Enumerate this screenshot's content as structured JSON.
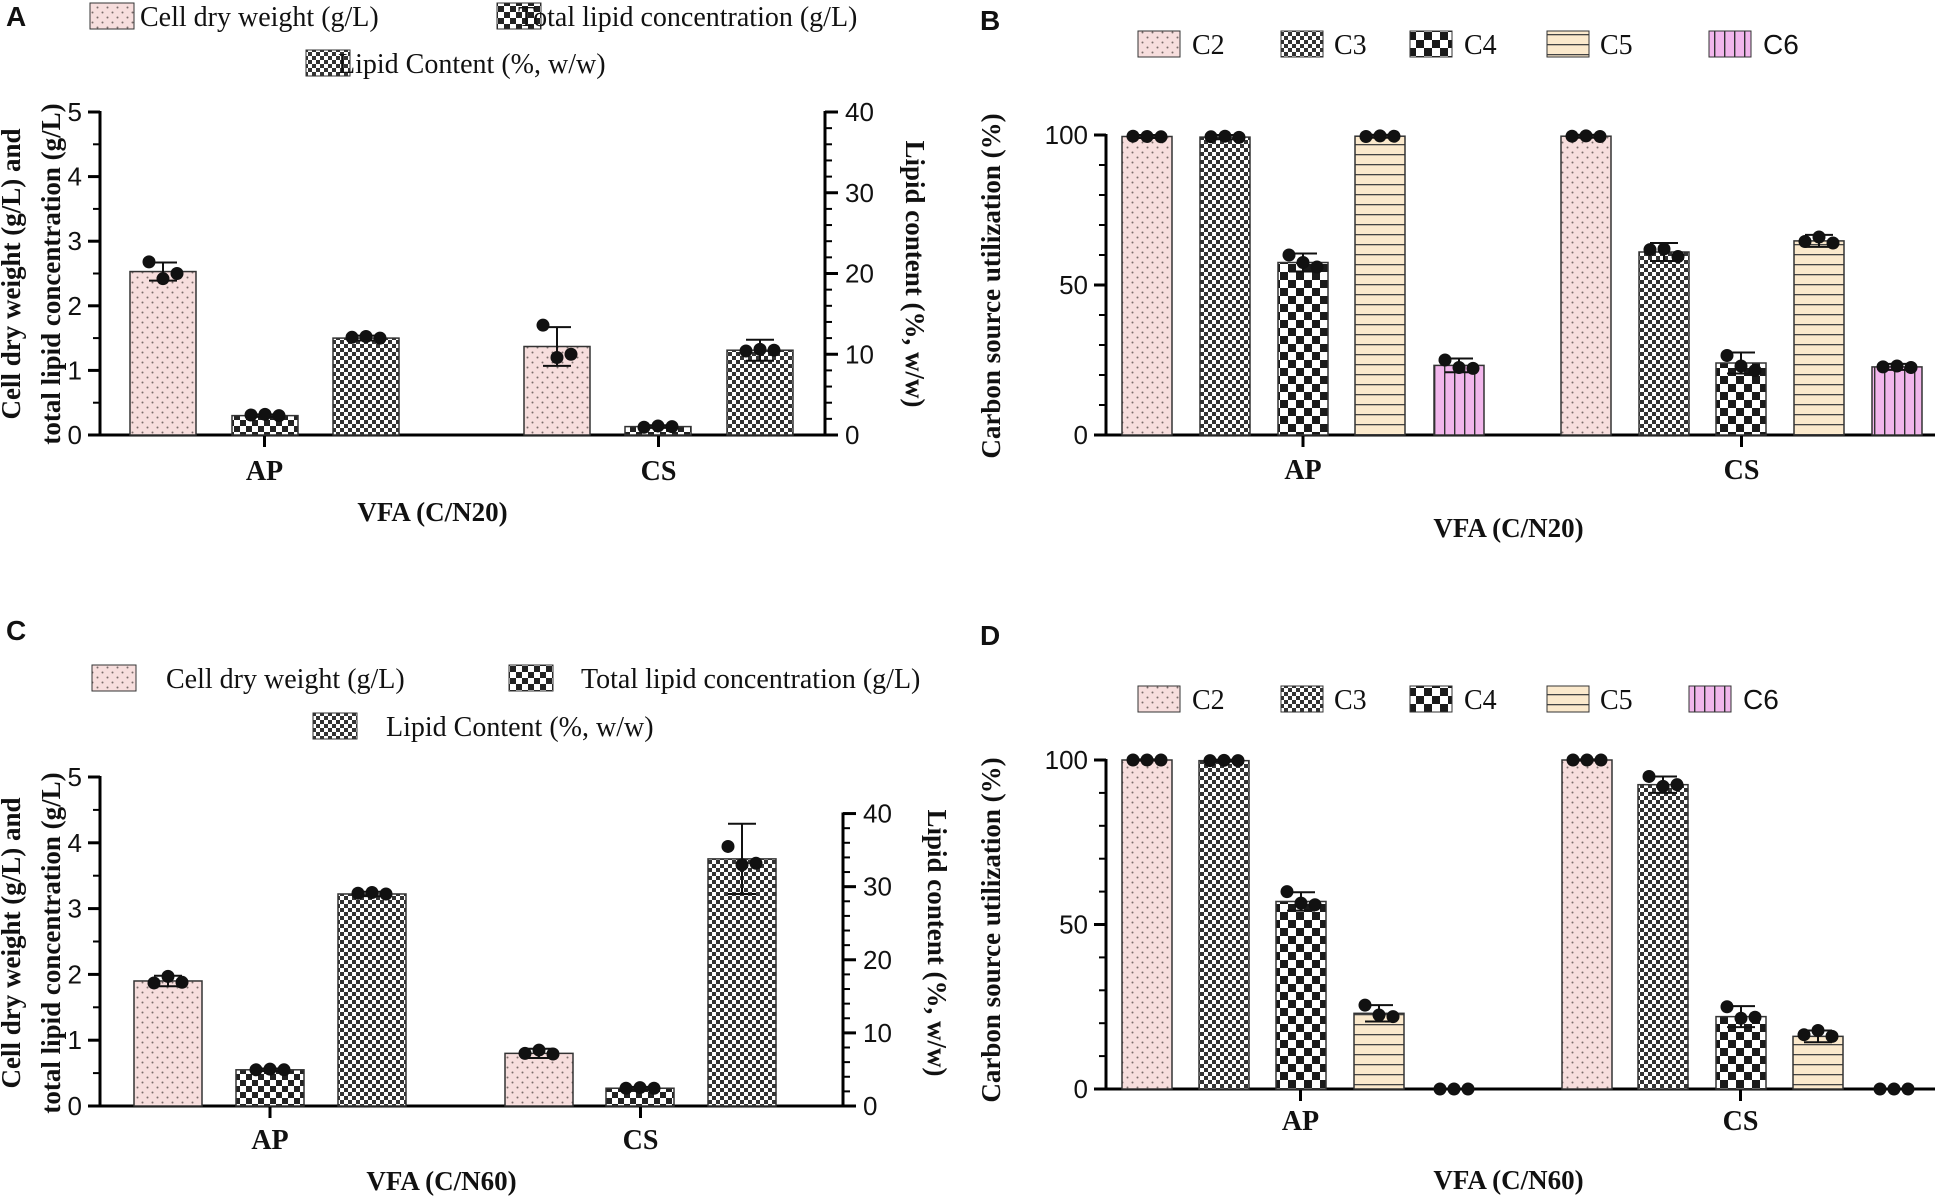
{
  "figure": {
    "colors": {
      "axis": "#000000",
      "pink": "#f7dedd",
      "peach": "#fbe9cc",
      "magenta": "#f2b6ec",
      "dots": "#111111"
    }
  },
  "chart_data": [
    {
      "panel": "A",
      "type": "bar",
      "categories": [
        "AP",
        "CS"
      ],
      "xlabel": "VFA (C/N20)",
      "ylabel_lines": [
        "Cell dry weight (g/L) and",
        "total lipid concentration (g/L)"
      ],
      "ylabel_right": "Lipid content (%, w/w)",
      "ylim": [
        0,
        5
      ],
      "yticks": [
        "0",
        "1",
        "2",
        "3",
        "4",
        "5"
      ],
      "ylim_right": [
        0,
        40
      ],
      "yticks_right": [
        "0",
        "10",
        "20",
        "30",
        "40"
      ],
      "legend": [
        {
          "label": "Cell dry weight (g/L)",
          "pattern": "dots-pink"
        },
        {
          "label": "Total lipid concentration (g/L)",
          "pattern": "checker-fine"
        },
        {
          "label": "Lipid Content (%, w/w)",
          "pattern": "checker-dense"
        }
      ],
      "series": [
        {
          "name": "Cell dry weight (g/L)",
          "axis": "left",
          "pattern": "dots-pink",
          "values": [
            2.53,
            1.37
          ],
          "err": [
            0.14,
            0.3
          ],
          "points": [
            [
              2.68,
              2.42,
              2.5
            ],
            [
              1.7,
              1.2,
              1.25
            ]
          ]
        },
        {
          "name": "Total lipid concentration (g/L)",
          "axis": "left",
          "pattern": "checker-fine",
          "values": [
            0.3,
            0.13
          ],
          "err": [
            0.02,
            0.02
          ],
          "points": [
            [
              0.31,
              0.32,
              0.3
            ],
            [
              0.12,
              0.14,
              0.13
            ]
          ]
        },
        {
          "name": "Lipid Content (%, w/w)",
          "axis": "right",
          "pattern": "checker-dense",
          "values": [
            12.0,
            10.5
          ],
          "err": [
            0.3,
            1.3
          ],
          "points": [
            [
              12.1,
              12.2,
              12.0
            ],
            [
              10.4,
              10.6,
              10.5
            ]
          ]
        }
      ]
    },
    {
      "panel": "B",
      "type": "bar",
      "categories": [
        "AP",
        "CS"
      ],
      "xlabel": "VFA (C/N20)",
      "ylabel": "Carbon source utilization (%)",
      "ylim": [
        0,
        100
      ],
      "yticks": [
        "0",
        "50",
        "100"
      ],
      "legend": [
        {
          "label": "C2",
          "pattern": "dots-pink"
        },
        {
          "label": "C3",
          "pattern": "checker-dense"
        },
        {
          "label": "C4",
          "pattern": "checker-coarse"
        },
        {
          "label": "C5",
          "pattern": "hlines-peach"
        },
        {
          "label": "C6",
          "pattern": "vlines-magenta"
        }
      ],
      "series": [
        {
          "name": "C2",
          "pattern": "dots-pink",
          "values": [
            99.5,
            99.6
          ],
          "err": [
            0.5,
            0.5
          ],
          "points": [
            [
              99.6,
              99.5,
              99.4
            ],
            [
              99.6,
              99.7,
              99.5
            ]
          ]
        },
        {
          "name": "C3",
          "pattern": "checker-dense",
          "values": [
            99.3,
            61.0
          ],
          "err": [
            0.7,
            3.0
          ],
          "points": [
            [
              99.4,
              99.6,
              99.2
            ],
            [
              61.8,
              62.0,
              59.5
            ]
          ]
        },
        {
          "name": "C4",
          "pattern": "checker-coarse",
          "values": [
            57.5,
            24.0
          ],
          "err": [
            3.0,
            3.5
          ],
          "points": [
            [
              60.0,
              57.5,
              56.0
            ],
            [
              26.5,
              23.0,
              21.5
            ]
          ]
        },
        {
          "name": "C5",
          "pattern": "hlines-peach",
          "values": [
            99.6,
            64.7
          ],
          "err": [
            0.5,
            2.0
          ],
          "points": [
            [
              99.5,
              99.7,
              99.6
            ],
            [
              64.5,
              66.0,
              64.0
            ]
          ]
        },
        {
          "name": "C6",
          "pattern": "vlines-magenta",
          "values": [
            23.2,
            22.7
          ],
          "err": [
            2.3,
            1.0
          ],
          "points": [
            [
              25.0,
              22.5,
              22.2
            ],
            [
              22.7,
              23.0,
              22.5
            ]
          ]
        }
      ]
    },
    {
      "panel": "C",
      "type": "bar",
      "categories": [
        "AP",
        "CS"
      ],
      "xlabel": "VFA (C/N60)",
      "ylabel_lines": [
        "Cell dry weight (g/L) and",
        "total lipid concentration (g/L)"
      ],
      "ylabel_right": "Lipid content (%, w/w)",
      "ylim": [
        0,
        5
      ],
      "yticks": [
        "0",
        "1",
        "2",
        "3",
        "4",
        "5"
      ],
      "ylim_right": [
        0,
        45
      ],
      "yticks_right": [
        "0",
        "10",
        "20",
        "30",
        "40"
      ],
      "legend": [
        {
          "label": "Cell dry weight (g/L)",
          "pattern": "dots-pink"
        },
        {
          "label": "Total lipid concentration (g/L)",
          "pattern": "checker-fine"
        },
        {
          "label": "Lipid Content (%, w/w)",
          "pattern": "checker-dense"
        }
      ],
      "series": [
        {
          "name": "Cell dry weight (g/L)",
          "axis": "left",
          "pattern": "dots-pink",
          "values": [
            1.9,
            0.8
          ],
          "err": [
            0.08,
            0.07
          ],
          "points": [
            [
              1.87,
              1.97,
              1.88
            ],
            [
              0.8,
              0.85,
              0.79
            ]
          ]
        },
        {
          "name": "Total lipid concentration (g/L)",
          "axis": "left",
          "pattern": "checker-fine",
          "values": [
            0.55,
            0.27
          ],
          "err": [
            0.02,
            0.02
          ],
          "points": [
            [
              0.55,
              0.56,
              0.55
            ],
            [
              0.27,
              0.28,
              0.27
            ]
          ]
        },
        {
          "name": "Lipid Content (%, w/w)",
          "axis": "right",
          "pattern": "checker-dense",
          "values": [
            29.0,
            33.8
          ],
          "err": [
            0.3,
            4.8
          ],
          "points": [
            [
              29.1,
              29.2,
              29.0
            ],
            [
              35.5,
              33.0,
              33.2
            ]
          ]
        }
      ]
    },
    {
      "panel": "D",
      "type": "bar",
      "categories": [
        "AP",
        "CS"
      ],
      "xlabel": "VFA (C/N60)",
      "ylabel": "Carbon source utilization (%)",
      "ylim": [
        0,
        100
      ],
      "yticks": [
        "0",
        "50",
        "100"
      ],
      "legend": [
        {
          "label": "C2",
          "pattern": "dots-pink"
        },
        {
          "label": "C3",
          "pattern": "checker-dense"
        },
        {
          "label": "C4",
          "pattern": "checker-coarse"
        },
        {
          "label": "C5",
          "pattern": "hlines-peach"
        },
        {
          "label": "C6",
          "pattern": "vlines-magenta"
        }
      ],
      "series": [
        {
          "name": "C2",
          "pattern": "dots-pink",
          "values": [
            100.0,
            100.0
          ],
          "err": [
            0.2,
            0.2
          ],
          "points": [
            [
              100.0,
              100.0,
              100.0
            ],
            [
              100.0,
              100.0,
              100.0
            ]
          ]
        },
        {
          "name": "C3",
          "pattern": "checker-dense",
          "values": [
            99.8,
            92.5
          ],
          "err": [
            0.3,
            2.5
          ],
          "points": [
            [
              99.8,
              99.9,
              99.8
            ],
            [
              95.0,
              92.0,
              92.5
            ]
          ]
        },
        {
          "name": "C4",
          "pattern": "checker-coarse",
          "values": [
            57.0,
            22.0
          ],
          "err": [
            2.8,
            3.2
          ],
          "points": [
            [
              60.0,
              56.5,
              56.0
            ],
            [
              25.0,
              21.5,
              21.8
            ]
          ]
        },
        {
          "name": "C5",
          "pattern": "hlines-peach",
          "values": [
            23.0,
            16.0
          ],
          "err": [
            2.5,
            1.8
          ],
          "points": [
            [
              25.5,
              22.5,
              22.0
            ],
            [
              16.5,
              17.8,
              16.0
            ]
          ]
        },
        {
          "name": "C6",
          "pattern": "vlines-magenta",
          "values": [
            0.0,
            0.0
          ],
          "err": [
            0,
            0
          ],
          "points": [
            [
              0,
              0,
              0
            ],
            [
              0,
              0,
              0
            ]
          ]
        }
      ]
    }
  ]
}
